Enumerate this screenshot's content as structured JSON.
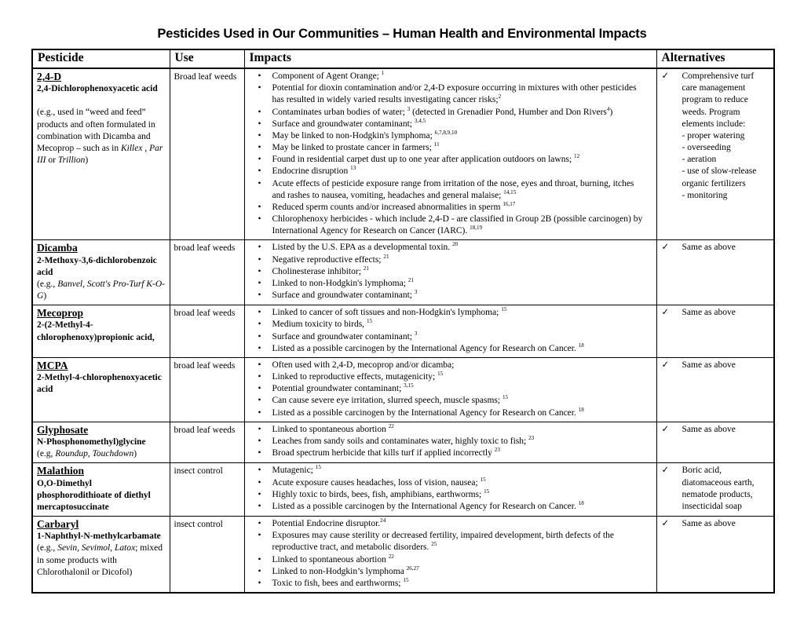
{
  "title": "Pesticides Used in Our Communities – Human Health and Environmental Impacts",
  "table": {
    "columns": [
      "Pesticide",
      "Use",
      "Impacts",
      "Alternatives"
    ],
    "check_glyph": "✓",
    "bullet_glyph": "•",
    "rows": [
      {
        "name": "2,4-D",
        "chem": "2,4-Dichlorophenoxyacetic acid",
        "note": "(e.g., used in “weed and feed” products and often formulated in combination with Dicamba and Mecoprop – such as in *Killex* , *Par III* or *Trillion*)",
        "gap_before_note": true,
        "use": "Broad leaf weeds",
        "impacts": [
          "Component of Agent Orange; ^{1}",
          "Potential for dioxin contamination and/or 2,4-D exposure occurring in mixtures with other pesticides has resulted in widely varied results investigating cancer risks;^{2}",
          "Contaminates urban bodies of water; ^{3} (detected in Grenadier Pond, Humber and Don Rivers^{4})",
          "Surface and groundwater contaminant; ^{3,4,5}",
          "May be linked to non-Hodgkin's lymphoma; ^{6,7,8,9,10}",
          "May be linked to prostate cancer in farmers; ^{11}",
          "Found in residential carpet dust up to one year after application outdoors on lawns; ^{12}",
          "Endocrine disruption ^{13}",
          "Acute effects of pesticide exposure range from irritation of the nose, eyes and throat, burning, itches and rashes to nausea, vomiting, headaches and general malaise; ^{14,15}",
          "Reduced sperm counts and/or increased abnormalities in sperm ^{16,17}",
          "Chlorophenoxy herbicides - which include 2,4-D - are classified in Group 2B (possible carcinogen) by International Agency for Research on Cancer (IARC). ^{18,19}"
        ],
        "alternatives": [
          "Comprehensive turf care management program to reduce weeds. Program elements include:",
          "- proper watering",
          "- overseeding",
          "- aeration",
          "- use of slow-release organic fertilizers",
          "- monitoring"
        ]
      },
      {
        "name": "Dicamba",
        "chem": "2-Methoxy-3,6-dichlorobenzoic acid",
        "note": "(e.g., *Banvel, Scott's Pro-Turf K-O-G*)",
        "gap_before_note": false,
        "use": "broad leaf weeds",
        "impacts": [
          "Listed by the U.S. EPA as a developmental toxin. ^{20}",
          "Negative reproductive effects; ^{21}",
          "Cholinesterase inhibitor; ^{21}",
          "Linked to non-Hodgkin's lymphoma; ^{21}",
          "Surface and groundwater contaminant; ^{3}"
        ],
        "alternatives": [
          "Same as above"
        ]
      },
      {
        "name": "Mecoprop",
        "chem": "2-(2-Methyl-4-chlorophenoxy)propionic acid,",
        "note": "",
        "gap_before_note": false,
        "use": "broad leaf weeds",
        "impacts": [
          "Linked to cancer of soft tissues and non-Hodgkin's lymphoma; ^{15}",
          "Medium toxicity to birds, ^{15}",
          "Surface and groundwater contaminant; ^{3}",
          "Listed as a possible carcinogen by the International Agency for Research on Cancer. ^{18}"
        ],
        "alternatives": [
          "Same as above"
        ]
      },
      {
        "name": "MCPA",
        "chem": "2-Methyl-4-chlorophenoxyacetic acid",
        "note": "",
        "gap_before_note": false,
        "use": "broad leaf weeds",
        "impacts": [
          "Often used with 2,4-D, mecoprop and/or dicamba;",
          "Linked to reproductive effects, mutagenicity; ^{15}",
          "Potential groundwater contaminant; ^{3,15}",
          "Can cause severe eye irritation, slurred speech, muscle spasms; ^{15}",
          "Listed as a possible carcinogen by the International Agency for Research on Cancer. ^{18}"
        ],
        "alternatives": [
          "Same as above"
        ]
      },
      {
        "name": "Glyphosate",
        "chem": "N-Phosphonomethyl)glycine",
        "note": "(e.g, *Roundup*, *Touchdown*)",
        "gap_before_note": false,
        "use": "broad leaf weeds",
        "impacts": [
          "Linked to spontaneous abortion ^{22}",
          "Leaches from sandy soils and contaminates water, highly toxic to fish; ^{23}",
          "Broad spectrum herbicide that kills turf if applied incorrectly ^{23}"
        ],
        "alternatives": [
          "Same as above"
        ]
      },
      {
        "name": "Malathion",
        "chem": "O,O-Dimethyl phosphorodithioate of diethyl mercaptosuccinate",
        "note": "",
        "gap_before_note": false,
        "use": "insect control",
        "impacts": [
          "Mutagenic; ^{15}",
          "Acute exposure causes headaches, loss of vision, nausea; ^{15}",
          "Highly toxic to birds, bees, fish, amphibians, earthworms; ^{15}",
          "Listed as a possible carcinogen by the International Agency for Research on Cancer. ^{18}"
        ],
        "alternatives": [
          "Boric acid, diatomaceous earth, nematode products, insecticidal soap"
        ]
      },
      {
        "name": "Carbaryl",
        "chem": "1-Naphthyl-N-methylcarbamate",
        "note": "(e.g., *Sevin, Sevimol, Latox*; mixed in some products with Chlorothalonil or Dicofol)",
        "gap_before_note": false,
        "use": "insect control",
        "impacts": [
          "Potential Endocrine disruptor.^{24}",
          "Exposures may cause sterility or decreased fertility, impaired development, birth defects of the reproductive tract, and metabolic disorders. ^{25}",
          "Linked to spontaneous abortion ^{22}",
          "Linked to non-Hodgkin’s lymphoma ^{26,27}",
          "Toxic to fish, bees and earthworms; ^{15}"
        ],
        "alternatives": [
          "Same as above"
        ]
      }
    ]
  }
}
